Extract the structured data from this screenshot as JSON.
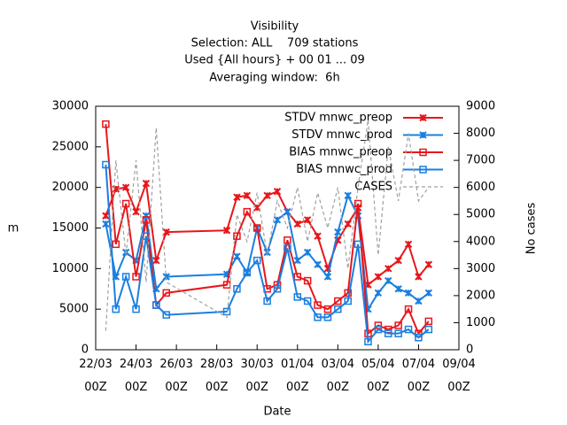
{
  "chart_data": {
    "type": "line",
    "title": "Visibility",
    "subtitles": [
      "Selection: ALL    709 stations",
      "Used {All hours} + 00 01 ... 09",
      "Averaging window:  6h"
    ],
    "x_label": "Date",
    "y_label": "m",
    "y2_label": "No cases",
    "x": [
      "22/03 12Z",
      "23/03 00Z",
      "23/03 12Z",
      "24/03 00Z",
      "24/03 12Z",
      "25/03 00Z",
      "25/03 12Z",
      "28/03 12Z",
      "29/03 00Z",
      "29/03 12Z",
      "30/03 00Z",
      "30/03 12Z",
      "31/03 00Z",
      "31/03 12Z",
      "01/04 00Z",
      "01/04 12Z",
      "02/04 00Z",
      "02/04 12Z",
      "03/04 00Z",
      "03/04 12Z",
      "04/04 00Z",
      "04/04 12Z",
      "05/04 00Z",
      "05/04 12Z",
      "06/04 00Z",
      "06/04 12Z",
      "07/04 00Z",
      "07/04 12Z"
    ],
    "xlim": [
      "22/03 00Z",
      "09/04 00Z"
    ],
    "xticks": [
      "22/03 00Z",
      "24/03 00Z",
      "26/03 00Z",
      "28/03 00Z",
      "30/03 00Z",
      "01/04 00Z",
      "03/04 00Z",
      "05/04 00Z",
      "07/04 00Z",
      "09/04 00Z"
    ],
    "ylim": [
      0,
      30000
    ],
    "yticks": [
      0,
      5000,
      10000,
      15000,
      20000,
      25000,
      30000
    ],
    "y2lim": [
      0,
      9000
    ],
    "y2ticks": [
      0,
      1000,
      2000,
      3000,
      4000,
      5000,
      6000,
      7000,
      8000,
      9000
    ],
    "legend": "top-right",
    "series": [
      {
        "name": "STDV mnwc_preop",
        "color": "#e8161b",
        "marker": "x",
        "values": [
          16500,
          19800,
          20000,
          17000,
          20500,
          11000,
          14500,
          14700,
          18800,
          19000,
          17500,
          19000,
          19500,
          17000,
          15500,
          16000,
          14000,
          10000,
          13500,
          15500,
          17500,
          8000,
          9000,
          10000,
          11000,
          13000,
          9000,
          10500
        ]
      },
      {
        "name": "STDV mnwc_prod",
        "color": "#1a7fe0",
        "marker": "x",
        "values": [
          15500,
          9000,
          12000,
          11000,
          16500,
          7500,
          9000,
          9300,
          11500,
          9500,
          15000,
          12000,
          16000,
          17000,
          11000,
          12000,
          10500,
          9000,
          14500,
          19000,
          16500,
          5000,
          7000,
          8500,
          7500,
          7000,
          6000,
          7000
        ]
      },
      {
        "name": "BIAS mnwc_preop",
        "color": "#e8161b",
        "marker": "square",
        "values": [
          27800,
          13000,
          18000,
          9000,
          16000,
          5500,
          7000,
          8000,
          14000,
          17000,
          15000,
          7500,
          8000,
          13500,
          9000,
          8500,
          5500,
          5000,
          6000,
          7000,
          18000,
          2000,
          3000,
          2500,
          3000,
          5000,
          2000,
          3500
        ]
      },
      {
        "name": "BIAS mnwc_prod",
        "color": "#1a7fe0",
        "marker": "square",
        "values": [
          22800,
          5000,
          9000,
          5000,
          14000,
          5500,
          4300,
          4700,
          7500,
          9500,
          11000,
          6000,
          7500,
          12500,
          6500,
          6000,
          4000,
          4000,
          5000,
          6000,
          13000,
          1000,
          2500,
          2000,
          2000,
          2500,
          1500,
          2500
        ]
      },
      {
        "name": "CASES",
        "color": "#a0a0a0",
        "marker": "none",
        "dashed": true,
        "axis": "y2",
        "values": [
          700,
          7000,
          3500,
          7000,
          2500,
          8200,
          2500,
          1200,
          5000,
          4000,
          5800,
          3500,
          5500,
          4500,
          6000,
          4000,
          5800,
          4500,
          6000,
          3000,
          6000,
          8500,
          3500,
          7500,
          5500,
          8000,
          5500,
          6000
        ]
      }
    ]
  }
}
